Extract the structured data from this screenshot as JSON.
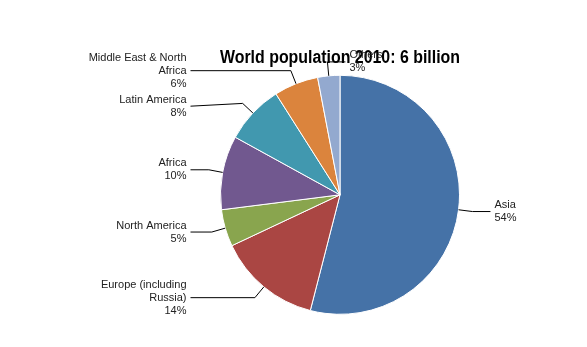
{
  "chart_data": {
    "type": "pie",
    "title": "World population 2010: 6 billion",
    "categories": [
      "Asia",
      "Europe (including Russia)",
      "North America",
      "Africa",
      "Latin America",
      "Middle East & North Africa",
      "Others"
    ],
    "values": [
      54,
      14,
      5,
      10,
      8,
      6,
      3
    ],
    "value_labels": [
      "54%",
      "14%",
      "5%",
      "10%",
      "8%",
      "6%",
      "3%"
    ],
    "colors": [
      "#4572A7",
      "#AA4643",
      "#89A54E",
      "#71588F",
      "#4198AF",
      "#DB843D",
      "#93A9CF"
    ],
    "data_labels": true
  }
}
